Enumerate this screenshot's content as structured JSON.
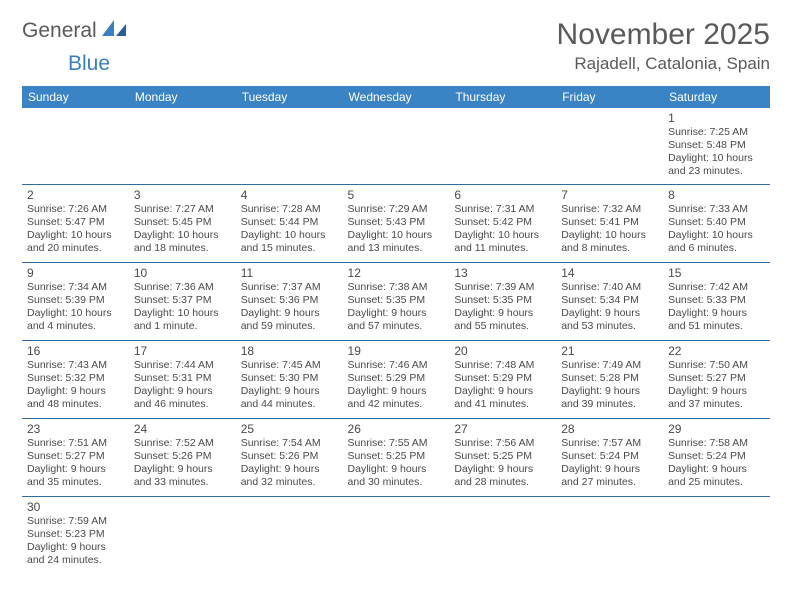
{
  "logo": {
    "text1": "General",
    "text2": "Blue"
  },
  "title": "November 2025",
  "location": "Rajadell, Catalonia, Spain",
  "colors": {
    "header_bg": "#3a83c5",
    "header_fg": "#ffffff",
    "border": "#2f6aa3",
    "shade": "#eeeeee",
    "text": "#4a4a4a",
    "logo_gray": "#5a5a5a",
    "logo_blue": "#3a7fc4"
  },
  "dayHeaders": [
    "Sunday",
    "Monday",
    "Tuesday",
    "Wednesday",
    "Thursday",
    "Friday",
    "Saturday"
  ],
  "weeks": [
    [
      null,
      null,
      null,
      null,
      null,
      null,
      {
        "n": 1,
        "sr": "7:25 AM",
        "ss": "5:48 PM",
        "dl": "10 hours and 23 minutes."
      }
    ],
    [
      {
        "n": 2,
        "sr": "7:26 AM",
        "ss": "5:47 PM",
        "dl": "10 hours and 20 minutes."
      },
      {
        "n": 3,
        "sr": "7:27 AM",
        "ss": "5:45 PM",
        "dl": "10 hours and 18 minutes."
      },
      {
        "n": 4,
        "sr": "7:28 AM",
        "ss": "5:44 PM",
        "dl": "10 hours and 15 minutes."
      },
      {
        "n": 5,
        "sr": "7:29 AM",
        "ss": "5:43 PM",
        "dl": "10 hours and 13 minutes."
      },
      {
        "n": 6,
        "sr": "7:31 AM",
        "ss": "5:42 PM",
        "dl": "10 hours and 11 minutes."
      },
      {
        "n": 7,
        "sr": "7:32 AM",
        "ss": "5:41 PM",
        "dl": "10 hours and 8 minutes."
      },
      {
        "n": 8,
        "sr": "7:33 AM",
        "ss": "5:40 PM",
        "dl": "10 hours and 6 minutes."
      }
    ],
    [
      {
        "n": 9,
        "sr": "7:34 AM",
        "ss": "5:39 PM",
        "dl": "10 hours and 4 minutes."
      },
      {
        "n": 10,
        "sr": "7:36 AM",
        "ss": "5:37 PM",
        "dl": "10 hours and 1 minute."
      },
      {
        "n": 11,
        "sr": "7:37 AM",
        "ss": "5:36 PM",
        "dl": "9 hours and 59 minutes."
      },
      {
        "n": 12,
        "sr": "7:38 AM",
        "ss": "5:35 PM",
        "dl": "9 hours and 57 minutes."
      },
      {
        "n": 13,
        "sr": "7:39 AM",
        "ss": "5:35 PM",
        "dl": "9 hours and 55 minutes."
      },
      {
        "n": 14,
        "sr": "7:40 AM",
        "ss": "5:34 PM",
        "dl": "9 hours and 53 minutes."
      },
      {
        "n": 15,
        "sr": "7:42 AM",
        "ss": "5:33 PM",
        "dl": "9 hours and 51 minutes."
      }
    ],
    [
      {
        "n": 16,
        "sr": "7:43 AM",
        "ss": "5:32 PM",
        "dl": "9 hours and 48 minutes."
      },
      {
        "n": 17,
        "sr": "7:44 AM",
        "ss": "5:31 PM",
        "dl": "9 hours and 46 minutes."
      },
      {
        "n": 18,
        "sr": "7:45 AM",
        "ss": "5:30 PM",
        "dl": "9 hours and 44 minutes."
      },
      {
        "n": 19,
        "sr": "7:46 AM",
        "ss": "5:29 PM",
        "dl": "9 hours and 42 minutes."
      },
      {
        "n": 20,
        "sr": "7:48 AM",
        "ss": "5:29 PM",
        "dl": "9 hours and 41 minutes."
      },
      {
        "n": 21,
        "sr": "7:49 AM",
        "ss": "5:28 PM",
        "dl": "9 hours and 39 minutes."
      },
      {
        "n": 22,
        "sr": "7:50 AM",
        "ss": "5:27 PM",
        "dl": "9 hours and 37 minutes."
      }
    ],
    [
      {
        "n": 23,
        "sr": "7:51 AM",
        "ss": "5:27 PM",
        "dl": "9 hours and 35 minutes."
      },
      {
        "n": 24,
        "sr": "7:52 AM",
        "ss": "5:26 PM",
        "dl": "9 hours and 33 minutes."
      },
      {
        "n": 25,
        "sr": "7:54 AM",
        "ss": "5:26 PM",
        "dl": "9 hours and 32 minutes."
      },
      {
        "n": 26,
        "sr": "7:55 AM",
        "ss": "5:25 PM",
        "dl": "9 hours and 30 minutes."
      },
      {
        "n": 27,
        "sr": "7:56 AM",
        "ss": "5:25 PM",
        "dl": "9 hours and 28 minutes."
      },
      {
        "n": 28,
        "sr": "7:57 AM",
        "ss": "5:24 PM",
        "dl": "9 hours and 27 minutes."
      },
      {
        "n": 29,
        "sr": "7:58 AM",
        "ss": "5:24 PM",
        "dl": "9 hours and 25 minutes."
      }
    ],
    [
      {
        "n": 30,
        "sr": "7:59 AM",
        "ss": "5:23 PM",
        "dl": "9 hours and 24 minutes."
      },
      null,
      null,
      null,
      null,
      null,
      null
    ]
  ],
  "labels": {
    "sunrise": "Sunrise: ",
    "sunset": "Sunset: ",
    "daylight": "Daylight: "
  }
}
